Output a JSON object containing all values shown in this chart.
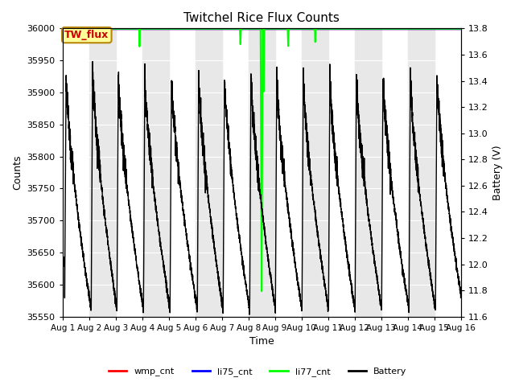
{
  "title": "Twitchel Rice Flux Counts",
  "xlabel": "Time",
  "ylabel_left": "Counts",
  "ylabel_right": "Battery (V)",
  "ylim_left": [
    35550,
    36000
  ],
  "ylim_right": [
    11.6,
    13.8
  ],
  "xlim": [
    0,
    15
  ],
  "xtick_labels": [
    "Aug 1",
    "Aug 2",
    "Aug 3",
    "Aug 4",
    "Aug 5",
    "Aug 6",
    "Aug 7",
    "Aug 8",
    "Aug 9",
    "Aug 10",
    "Aug 11",
    "Aug 12",
    "Aug 13",
    "Aug 14",
    "Aug 15",
    "Aug 16"
  ],
  "xtick_positions": [
    0,
    1,
    2,
    3,
    4,
    5,
    6,
    7,
    8,
    9,
    10,
    11,
    12,
    13,
    14,
    15
  ],
  "annotation_box_text": "TW_flux",
  "annotation_box_color": "#ffff99",
  "annotation_box_edge": "#b8860b",
  "annotation_text_color": "#cc0000",
  "li77_color": "#00ff00",
  "li75_color": "#0000ff",
  "wmp_color": "#ff0000",
  "battery_color": "#000000",
  "bg_band_color": "#e8e8e8",
  "left_ticks": [
    35550,
    35600,
    35650,
    35700,
    35750,
    35800,
    35850,
    35900,
    35950,
    36000
  ],
  "right_ticks": [
    11.6,
    11.8,
    12.0,
    12.2,
    12.4,
    12.6,
    12.8,
    13.0,
    13.2,
    13.4,
    13.6,
    13.8
  ]
}
